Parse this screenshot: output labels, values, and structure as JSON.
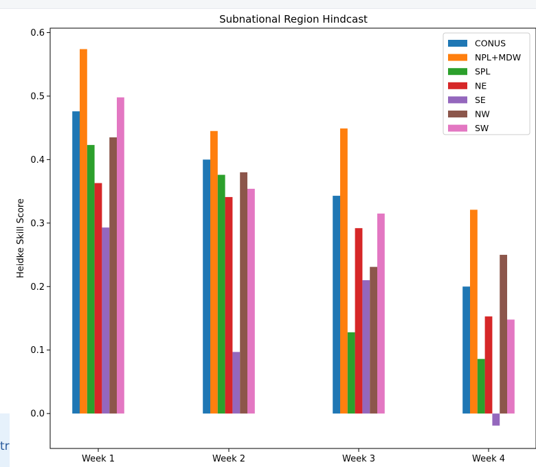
{
  "page": {
    "side_fragment": "tr"
  },
  "chart_data": {
    "type": "bar",
    "title": "Subnational Region Hindcast",
    "xlabel": "",
    "ylabel": "Heidke Skill Score",
    "categories": [
      "Week 1",
      "Week 2",
      "Week 3",
      "Week 4"
    ],
    "ylim": [
      -0.055,
      0.607
    ],
    "yticks": [
      0.0,
      0.1,
      0.2,
      0.3,
      0.4,
      0.5,
      0.6
    ],
    "ytick_labels": [
      "0.0",
      "0.1",
      "0.2",
      "0.3",
      "0.4",
      "0.5",
      "0.6"
    ],
    "grid": false,
    "legend_position": "top-right",
    "series": [
      {
        "name": "CONUS",
        "color": "#1f77b4",
        "values": [
          0.476,
          0.4,
          0.343,
          0.2
        ]
      },
      {
        "name": "NPL+MDW",
        "color": "#ff7f0e",
        "values": [
          0.574,
          0.445,
          0.449,
          0.321
        ]
      },
      {
        "name": "SPL",
        "color": "#2ca02c",
        "values": [
          0.423,
          0.376,
          0.128,
          0.086
        ]
      },
      {
        "name": "NE",
        "color": "#d62728",
        "values": [
          0.363,
          0.341,
          0.292,
          0.153
        ]
      },
      {
        "name": "SE",
        "color": "#9467bd",
        "values": [
          0.293,
          0.097,
          0.21,
          -0.019
        ]
      },
      {
        "name": "NW",
        "color": "#8c564b",
        "values": [
          0.435,
          0.38,
          0.231,
          0.25
        ]
      },
      {
        "name": "SW",
        "color": "#e377c2",
        "values": [
          0.498,
          0.354,
          0.315,
          0.148
        ]
      }
    ]
  }
}
